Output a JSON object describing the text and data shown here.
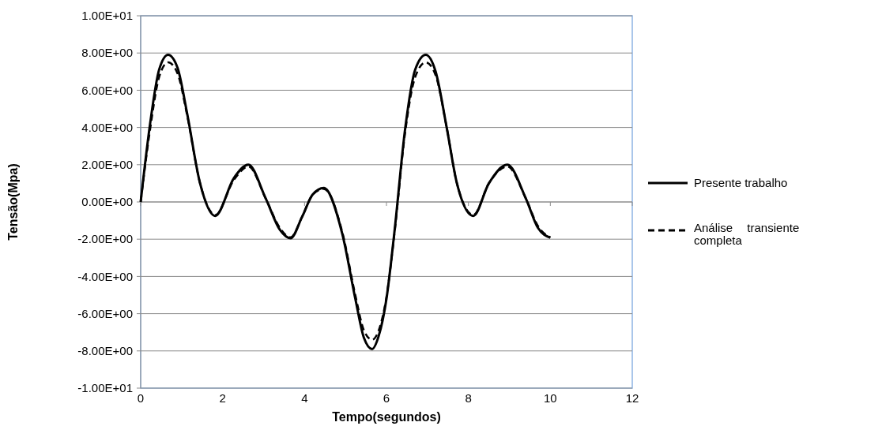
{
  "chart_data": {
    "type": "line",
    "xlabel": "Tempo(segundos)",
    "ylabel": "Tensão(Mpa)",
    "xlim": [
      0,
      12
    ],
    "xticks": [
      0,
      2,
      4,
      6,
      8,
      10,
      12
    ],
    "ylim": [
      -10,
      10
    ],
    "yticks": [
      {
        "value": -10,
        "label": "-1.00E+01"
      },
      {
        "value": -8,
        "label": "-8.00E+00"
      },
      {
        "value": -6,
        "label": "-6.00E+00"
      },
      {
        "value": -4,
        "label": "-4.00E+00"
      },
      {
        "value": -2,
        "label": "-2.00E+00"
      },
      {
        "value": 0,
        "label": "0.00E+00"
      },
      {
        "value": 2,
        "label": "2.00E+00"
      },
      {
        "value": 4,
        "label": "4.00E+00"
      },
      {
        "value": 6,
        "label": "6.00E+00"
      },
      {
        "value": 8,
        "label": "8.00E+00"
      },
      {
        "value": 10,
        "label": "1.00E+01"
      }
    ],
    "grid": "y",
    "legend": "right",
    "marker": "none",
    "series": [
      {
        "name": "Presente trabalho",
        "color": "#000000",
        "line_style": "solid",
        "x": [
          0,
          0.23,
          0.45,
          0.67,
          0.9,
          1.13,
          1.45,
          1.82,
          2.28,
          2.63,
          3.05,
          3.4,
          3.66,
          3.94,
          4.2,
          4.47,
          4.92,
          5.24,
          5.45,
          5.65,
          5.81,
          6.0,
          6.19,
          6.46,
          6.7,
          6.96,
          7.2,
          7.47,
          7.72,
          8.12,
          8.5,
          8.95,
          9.4,
          9.7,
          10
        ],
        "values": [
          0,
          4.2,
          7.1,
          7.9,
          7.2,
          4.8,
          1.0,
          -0.75,
          1.3,
          2.0,
          0.2,
          -1.5,
          -1.95,
          -0.8,
          0.4,
          0.75,
          -1.7,
          -5.2,
          -7.3,
          -7.9,
          -7.2,
          -5.2,
          -1.7,
          4.0,
          7.1,
          7.9,
          7.0,
          4.0,
          1.0,
          -0.75,
          1.0,
          2.0,
          0.2,
          -1.4,
          -1.92
        ]
      },
      {
        "name": "Análise transiente completa",
        "color": "#000000",
        "line_style": "dashed",
        "x": [
          0,
          0.23,
          0.45,
          0.67,
          0.9,
          1.13,
          1.45,
          1.82,
          2.28,
          2.63,
          3.05,
          3.4,
          3.66,
          3.94,
          4.2,
          4.47,
          4.92,
          5.24,
          5.45,
          5.65,
          5.81,
          6.0,
          6.19,
          6.46,
          6.7,
          6.96,
          7.2,
          7.47,
          7.72,
          8.12,
          8.5,
          8.95,
          9.4,
          9.7,
          10
        ],
        "values": [
          0,
          3.9,
          6.7,
          7.5,
          6.9,
          4.7,
          1.0,
          -0.7,
          1.2,
          1.9,
          0.2,
          -1.4,
          -1.9,
          -0.8,
          0.4,
          0.7,
          -1.6,
          -5.0,
          -6.9,
          -7.4,
          -6.9,
          -5.1,
          -1.8,
          3.8,
          6.7,
          7.5,
          6.8,
          4.0,
          1.0,
          -0.7,
          1.0,
          1.9,
          0.2,
          -1.3,
          -1.9
        ]
      }
    ]
  }
}
